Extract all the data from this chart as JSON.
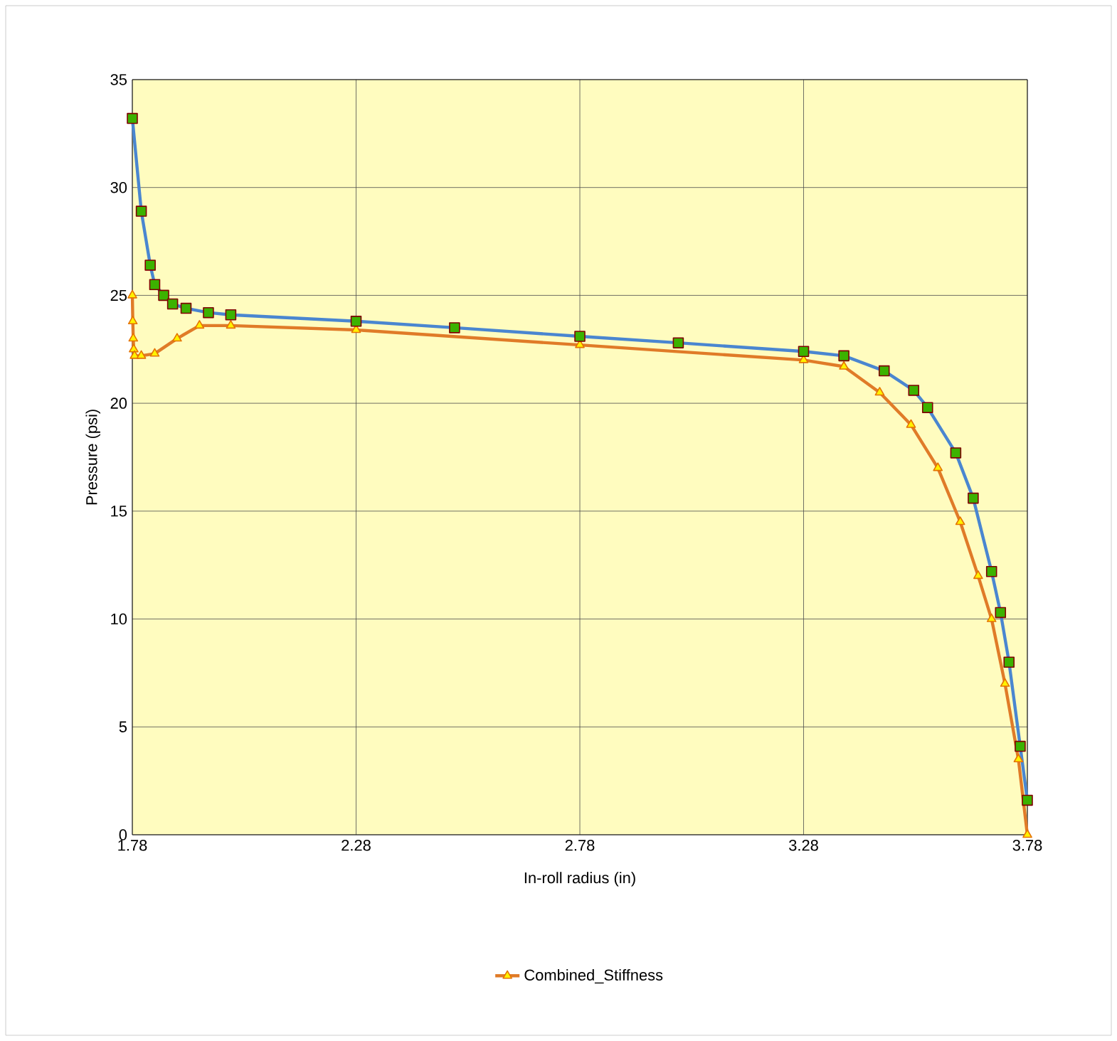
{
  "chart_data": {
    "type": "line",
    "xlabel": "In-roll radius (in)",
    "ylabel": "Pressure (psi)",
    "xlim": [
      1.78,
      3.78
    ],
    "xticks": [
      1.78,
      2.28,
      2.78,
      3.28,
      3.78
    ],
    "ylim": [
      0,
      35
    ],
    "yticks": [
      0,
      5,
      10,
      15,
      20,
      25,
      30,
      35
    ],
    "grid": true,
    "legend": "bottom",
    "series": [
      {
        "name": "Combined_Stiffness",
        "color": "#e07b28",
        "marker": "triangle",
        "x": [
          1.78,
          1.781,
          1.782,
          1.783,
          1.785,
          1.8,
          1.83,
          1.88,
          1.93,
          2.0,
          2.28,
          2.78,
          3.28,
          3.37,
          3.45,
          3.52,
          3.58,
          3.63,
          3.67,
          3.7,
          3.73,
          3.76,
          3.78
        ],
        "values": [
          25.0,
          23.8,
          23.0,
          22.5,
          22.2,
          22.2,
          22.3,
          23.0,
          23.6,
          23.6,
          23.4,
          22.7,
          22.0,
          21.7,
          20.5,
          19.0,
          17.0,
          14.5,
          12.0,
          10.0,
          7.0,
          3.5,
          0.0
        ]
      },
      {
        "color": "#4a86d0",
        "marker": "square",
        "x": [
          1.78,
          1.8,
          1.82,
          1.83,
          1.85,
          1.87,
          1.9,
          1.95,
          2.0,
          2.28,
          2.5,
          2.78,
          3.0,
          3.28,
          3.37,
          3.46,
          3.526,
          3.557,
          3.62,
          3.659,
          3.7,
          3.72,
          3.739,
          3.764,
          3.78
        ],
        "values": [
          33.2,
          28.9,
          26.4,
          25.5,
          25.0,
          24.6,
          24.4,
          24.2,
          24.1,
          23.8,
          23.5,
          23.1,
          22.8,
          22.4,
          22.2,
          21.5,
          20.6,
          19.8,
          17.7,
          15.6,
          12.2,
          10.3,
          8.0,
          4.1,
          1.6
        ]
      }
    ]
  }
}
